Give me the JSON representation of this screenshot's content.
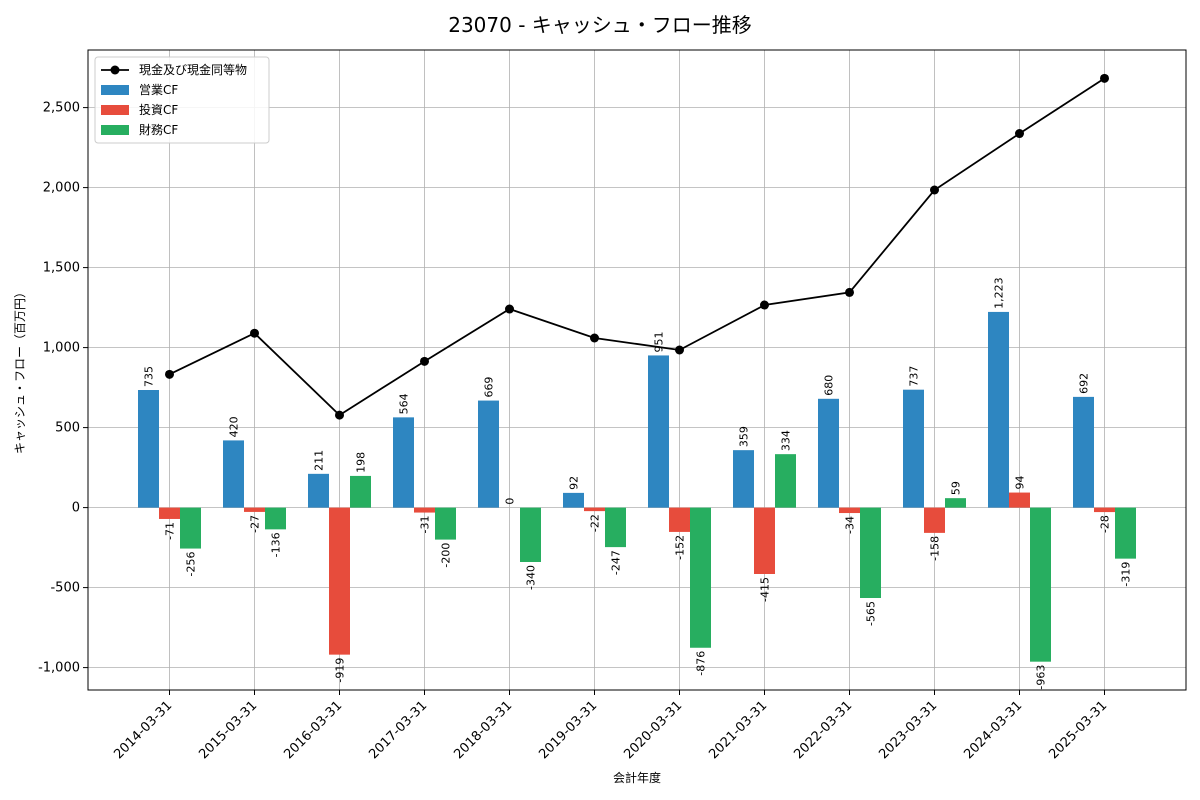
{
  "chart_data": {
    "type": "bar",
    "title": "23070 - キャッシュ・フロー推移",
    "xlabel": "会計年度",
    "ylabel": "キャッシュ・フロー（百万円）",
    "categories": [
      "2014-03-31",
      "2015-03-31",
      "2016-03-31",
      "2017-03-31",
      "2018-03-31",
      "2019-03-31",
      "2020-03-31",
      "2021-03-31",
      "2022-03-31",
      "2023-03-31",
      "2024-03-31",
      "2025-03-31"
    ],
    "ylim": [
      -1140,
      2860
    ],
    "yticks": [
      -1000,
      -500,
      0,
      500,
      1000,
      1500,
      2000,
      2500
    ],
    "ytick_labels": [
      "-1,000",
      "-500",
      "0",
      "500",
      "1,000",
      "1,500",
      "2,000",
      "2,500"
    ],
    "grid": true,
    "legend_position": "top-left",
    "series": [
      {
        "name": "営業CF",
        "kind": "bar",
        "color": "#2e86c1",
        "values": [
          735,
          420,
          211,
          564,
          669,
          92,
          951,
          359,
          680,
          737,
          1223,
          692
        ],
        "labels": [
          "735",
          "420",
          "211",
          "564",
          "669",
          "92",
          "951",
          "359",
          "680",
          "737",
          "1,223",
          "692"
        ]
      },
      {
        "name": "投資CF",
        "kind": "bar",
        "color": "#e74c3c",
        "values": [
          -71,
          -27,
          -919,
          -31,
          0,
          -22,
          -152,
          -415,
          -34,
          -158,
          94,
          -28
        ],
        "labels": [
          "-71",
          "-27",
          "-919",
          "-31",
          "0",
          "-22",
          "-152",
          "-415",
          "-34",
          "-158",
          "94",
          "-28"
        ]
      },
      {
        "name": "財務CF",
        "kind": "bar",
        "color": "#27ae60",
        "values": [
          -256,
          -136,
          198,
          -200,
          -340,
          -247,
          -876,
          334,
          -565,
          59,
          -963,
          -319
        ],
        "labels": [
          "-256",
          "-136",
          "198",
          "-200",
          "-340",
          "-247",
          "-876",
          "334",
          "-565",
          "59",
          "-963",
          "-319"
        ]
      },
      {
        "name": "現金及び現金同等物",
        "kind": "line",
        "color": "#000000",
        "values": [
          833,
          1090,
          578,
          914,
          1241,
          1060,
          985,
          1266,
          1345,
          1985,
          2338,
          2683
        ]
      }
    ]
  }
}
